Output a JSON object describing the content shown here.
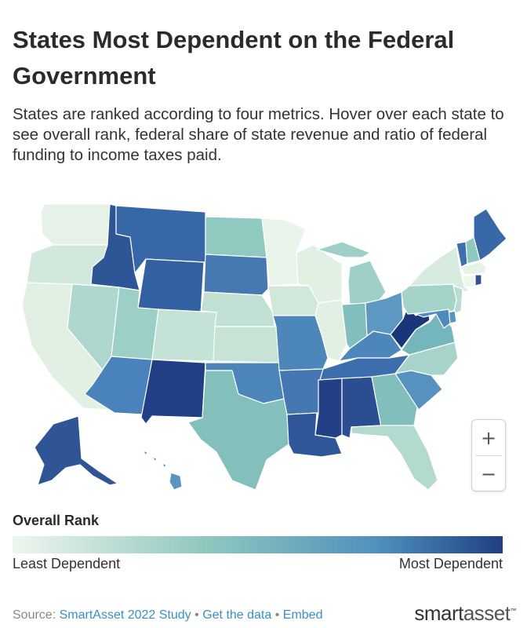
{
  "title": "States Most Dependent on the Federal Government",
  "subtitle": "States are ranked according to four metrics. Hover over each state to see overall rank, federal share of state revenue and ratio of federal funding to income taxes paid.",
  "zoom": {
    "in_label": "+",
    "out_label": "−"
  },
  "legend": {
    "title": "Overall Rank",
    "low_label": "Least Dependent",
    "high_label": "Most Dependent",
    "colors": [
      "#eef6ee",
      "#8ec7bf",
      "#4e8fbe",
      "#1f3f82"
    ]
  },
  "footer": {
    "source_prefix": "Source:",
    "study_link": "SmartAsset 2022 Study",
    "sep1": "•",
    "data_link": "Get the data",
    "sep2": "•",
    "embed_link": "Embed",
    "brand_a": "smart",
    "brand_b": "asset",
    "brand_tm": "™"
  },
  "states": {
    "WA": "#e6f2e8",
    "OR": "#d2e8dc",
    "CA": "#e2f0e4",
    "NV": "#aed8cf",
    "ID": "#2e5596",
    "MT": "#3767a6",
    "WY": "#3360a0",
    "UT": "#9ccfc6",
    "AZ": "#4a83bb",
    "CO": "#c4e2d5",
    "NM": "#213f84",
    "ND": "#90c9c0",
    "SD": "#4678b2",
    "NE": "#c1e1d4",
    "KS": "#c6e3d6",
    "OK": "#4c85ba",
    "TX": "#83c0bb",
    "MN": "#e9f4ea",
    "IA": "#cfe8da",
    "MO": "#4c86bb",
    "AR": "#4577b2",
    "LA": "#2e5698",
    "WI": "#e2f0e4",
    "IL": "#e2f0e4",
    "MI": "#9fd0c7",
    "IN": "#82bfbc",
    "OH": "#5c98c2",
    "KY": "#4d86bb",
    "TN": "#3c6dac",
    "MS": "#233f86",
    "AL": "#2b4d91",
    "GA": "#82bfbc",
    "FL": "#b2dace",
    "SC": "#5691c0",
    "NC": "#a6d4ca",
    "VA": "#74b6bb",
    "WV": "#1a3578",
    "PA": "#a4d3c9",
    "NY": "#d7ebdf",
    "VT": "#3f70ae",
    "NH": "#8fc8c0",
    "ME": "#3968a8",
    "MA": "#e6f2e8",
    "CT": "#eef6ee",
    "RI": "#2f5597",
    "NJ": "#b7ddd0",
    "DE": "#5a95c2",
    "MD": "#4f8abd",
    "AK": "#2f5597",
    "HI": "#5a95c2"
  }
}
